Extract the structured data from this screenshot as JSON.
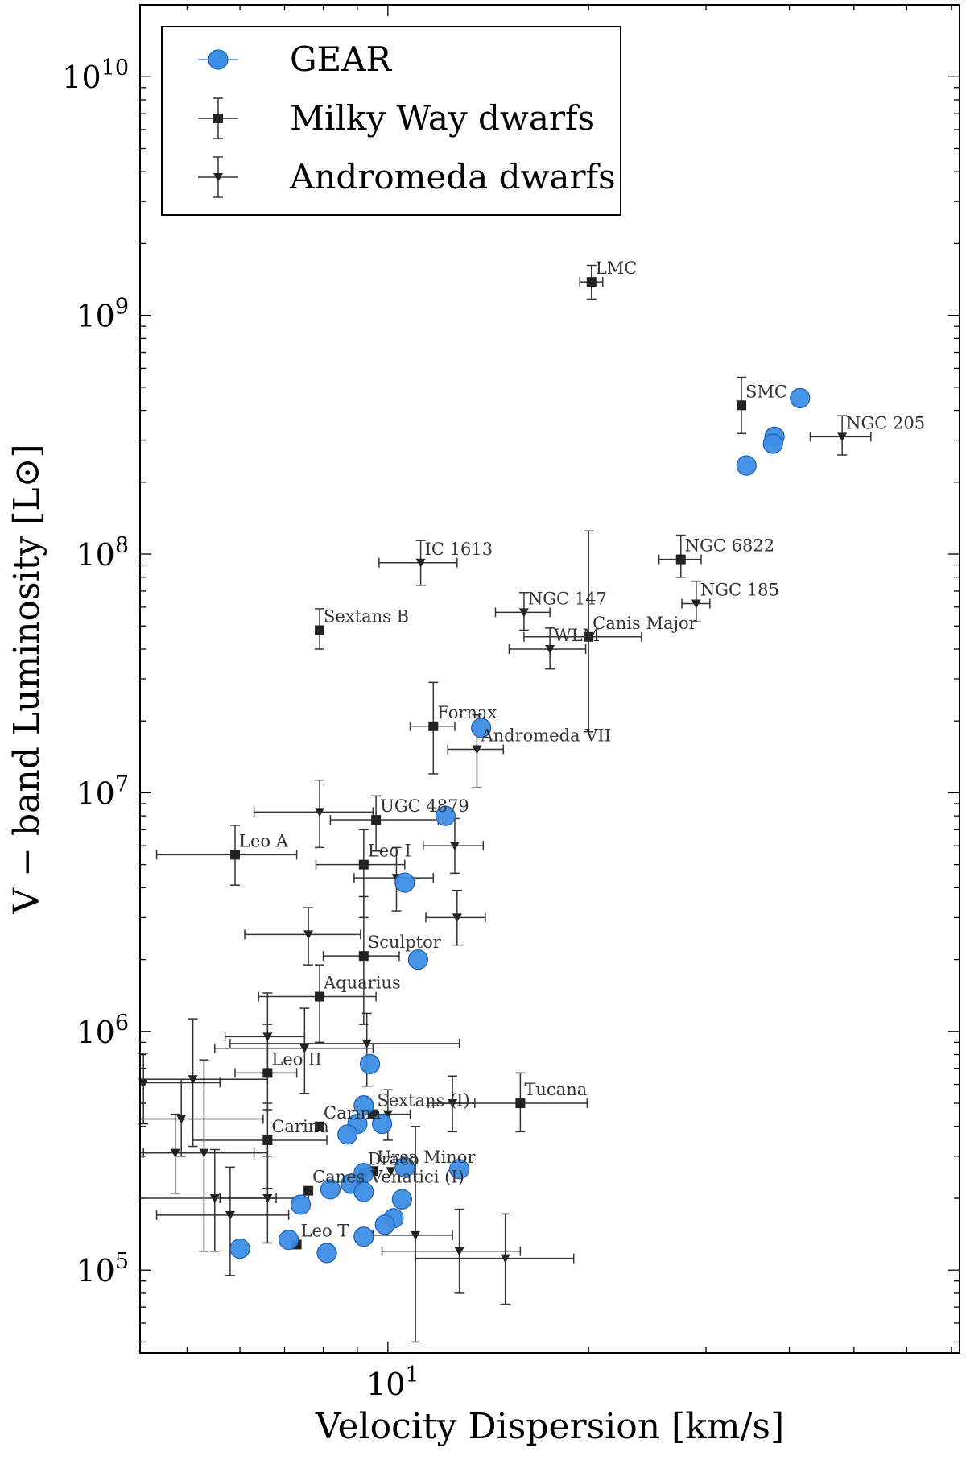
{
  "chart_data": {
    "type": "scatter",
    "title": "",
    "xlabel": "Velocity Dispersion [km/s]",
    "ylabel": "V − band Luminosity [L⊙]",
    "xscale": "log",
    "yscale": "log",
    "xlim": [
      4.25,
      72
    ],
    "ylim": [
      45000,
      20000000000
    ],
    "x_tick_labels": [
      {
        "value": 10,
        "base": "10",
        "exp": "1"
      }
    ],
    "y_tick_labels": [
      {
        "value": 100000,
        "base": "10",
        "exp": "5"
      },
      {
        "value": 1000000,
        "base": "10",
        "exp": "6"
      },
      {
        "value": 10000000,
        "base": "10",
        "exp": "7"
      },
      {
        "value": 100000000,
        "base": "10",
        "exp": "8"
      },
      {
        "value": 1000000000,
        "base": "10",
        "exp": "9"
      },
      {
        "value": 10000000000,
        "base": "10",
        "exp": "10"
      }
    ],
    "legend": {
      "position": "top-left",
      "entries": [
        {
          "label": "GEAR",
          "marker": "circle",
          "color": "#3d8ee6"
        },
        {
          "label": "Milky Way dwarfs",
          "marker": "square",
          "color": "#222222"
        },
        {
          "label": "Andromeda dwarfs",
          "marker": "triangle-down",
          "color": "#222222"
        }
      ]
    },
    "series": [
      {
        "name": "GEAR",
        "marker": "circle",
        "color": "#3d8ee6",
        "points": [
          {
            "x": 41.5,
            "y": 450000000
          },
          {
            "x": 38.0,
            "y": 310000000
          },
          {
            "x": 37.8,
            "y": 290000000
          },
          {
            "x": 34.5,
            "y": 235000000
          },
          {
            "x": 13.8,
            "y": 18700000
          },
          {
            "x": 12.2,
            "y": 8000000
          },
          {
            "x": 10.6,
            "y": 4200000
          },
          {
            "x": 11.1,
            "y": 2000000
          },
          {
            "x": 9.4,
            "y": 730000
          },
          {
            "x": 9.2,
            "y": 490000
          },
          {
            "x": 9.0,
            "y": 410000
          },
          {
            "x": 9.8,
            "y": 410000
          },
          {
            "x": 8.7,
            "y": 370000
          },
          {
            "x": 10.6,
            "y": 270000
          },
          {
            "x": 12.8,
            "y": 265000
          },
          {
            "x": 9.2,
            "y": 255000
          },
          {
            "x": 8.8,
            "y": 230000
          },
          {
            "x": 8.2,
            "y": 218000
          },
          {
            "x": 9.2,
            "y": 213000
          },
          {
            "x": 10.5,
            "y": 198000
          },
          {
            "x": 7.4,
            "y": 188000
          },
          {
            "x": 10.2,
            "y": 165000
          },
          {
            "x": 9.9,
            "y": 155000
          },
          {
            "x": 9.2,
            "y": 138000
          },
          {
            "x": 7.1,
            "y": 134000
          },
          {
            "x": 6.0,
            "y": 123000
          },
          {
            "x": 8.1,
            "y": 118000
          }
        ]
      },
      {
        "name": "Milky Way dwarfs",
        "marker": "square",
        "color": "#222222",
        "points": [
          {
            "x": 20.2,
            "y": 1380000000,
            "xerr": [
              0.8,
              0.8
            ],
            "yerr": [
              210000000,
              240000000
            ],
            "label": "LMC"
          },
          {
            "x": 33.9,
            "y": 420000000,
            "xerr": [
              0,
              0
            ],
            "yerr": [
              100000000,
              130000000
            ],
            "label": "SMC"
          },
          {
            "x": 27.5,
            "y": 95000000,
            "xerr": [
              2.0,
              2.0
            ],
            "yerr": [
              15000000,
              25000000
            ],
            "label": "NGC 6822"
          },
          {
            "x": 7.9,
            "y": 48000000,
            "xerr": [
              0,
              0
            ],
            "yerr": [
              8000000,
              11000000
            ],
            "label": "Sextans B"
          },
          {
            "x": 20.0,
            "y": 45000000,
            "xerr": [
              4.0,
              4.0
            ],
            "yerr": [
              27000000,
              80000000
            ],
            "label": "Canis Major"
          },
          {
            "x": 11.7,
            "y": 19000000,
            "xerr": [
              0.9,
              0.9
            ],
            "yerr": [
              7000000,
              10000000
            ],
            "label": "Fornax"
          },
          {
            "x": 9.6,
            "y": 7700000,
            "xerr": [
              1.4,
              2.3
            ],
            "yerr": [
              2000000,
              2000000
            ],
            "label": "UGC 4879"
          },
          {
            "x": 5.9,
            "y": 5500000,
            "xerr": [
              1.4,
              1.4
            ],
            "yerr": [
              1400000,
              1800000
            ],
            "label": "Leo A"
          },
          {
            "x": 9.2,
            "y": 5000000,
            "xerr": [
              1.4,
              1.4
            ],
            "yerr": [
              2000000,
              2000000
            ],
            "label": "Leo I"
          },
          {
            "x": 9.2,
            "y": 2070000,
            "xerr": [
              1.2,
              1.2
            ],
            "yerr": [
              1000000,
              1600000
            ],
            "label": "Sculptor"
          },
          {
            "x": 7.9,
            "y": 1400000,
            "xerr": [
              1.5,
              1.7
            ],
            "yerr": [
              500000,
              500000
            ],
            "label": "Aquarius"
          },
          {
            "x": 6.6,
            "y": 670000,
            "xerr": [
              0.7,
              0.7
            ],
            "yerr": [
              200000,
              400000
            ],
            "label": "Leo II"
          },
          {
            "x": 15.8,
            "y": 500000,
            "xerr": [
              4.1,
              4.1
            ],
            "yerr": [
              120000,
              170000
            ],
            "label": "Tucana"
          },
          {
            "x": 9.5,
            "y": 450000,
            "xerr": [
              0,
              0
            ],
            "yerr": [
              0,
              0
            ],
            "label": "Sextans (I)"
          },
          {
            "x": 7.9,
            "y": 400000,
            "xerr": [
              0,
              0
            ],
            "yerr": [
              0,
              0
            ],
            "label": "Carina"
          },
          {
            "x": 6.6,
            "y": 350000,
            "xerr": [
              1.5,
              1.5
            ],
            "yerr": [
              130000,
              150000
            ],
            "label": "Carina"
          },
          {
            "x": 9.5,
            "y": 260000,
            "xerr": [
              0,
              0
            ],
            "yerr": [
              0,
              0
            ],
            "label": "Ursa Minor"
          },
          {
            "x": 9.2,
            "y": 255000,
            "xerr": [
              0,
              0
            ],
            "yerr": [
              0,
              0
            ],
            "label": "Draco"
          },
          {
            "x": 7.6,
            "y": 215000,
            "xerr": [
              0,
              0
            ],
            "yerr": [
              0,
              0
            ],
            "label": "Canes Venatici (I)"
          },
          {
            "x": 7.3,
            "y": 128000,
            "xerr": [
              0,
              0
            ],
            "yerr": [
              0,
              0
            ],
            "label": "Leo T"
          }
        ]
      },
      {
        "name": "Andromeda dwarfs",
        "marker": "triangle-down",
        "color": "#222222",
        "points": [
          {
            "x": 48.0,
            "y": 310000000,
            "xerr": [
              5.0,
              5.0
            ],
            "yerr": [
              50000000,
              70000000
            ],
            "label": "NGC 205"
          },
          {
            "x": 11.2,
            "y": 92000000,
            "xerr": [
              1.5,
              1.5
            ],
            "yerr": [
              18000000,
              22000000
            ],
            "label": "IC 1613"
          },
          {
            "x": 29.0,
            "y": 62000000,
            "xerr": [
              1.4,
              1.4
            ],
            "yerr": [
              10000000,
              15000000
            ],
            "label": "NGC 185"
          },
          {
            "x": 16.0,
            "y": 57000000,
            "xerr": [
              1.5,
              1.5
            ],
            "yerr": [
              9000000,
              12000000
            ],
            "label": "NGC 147"
          },
          {
            "x": 17.5,
            "y": 40000000,
            "xerr": [
              2.3,
              2.3
            ],
            "yerr": [
              7000000,
              9000000
            ],
            "label": "WLM"
          },
          {
            "x": 13.6,
            "y": 15200000,
            "xerr": [
              1.3,
              1.3
            ],
            "yerr": [
              4700000,
              6000000
            ],
            "label": "Andromeda VII"
          },
          {
            "x": 7.9,
            "y": 8300000,
            "xerr": [
              1.6,
              1.6
            ],
            "yerr": [
              2400000,
              3000000
            ]
          },
          {
            "x": 12.6,
            "y": 6000000,
            "xerr": [
              1.3,
              1.3
            ],
            "yerr": [
              1400000,
              1800000
            ]
          },
          {
            "x": 10.3,
            "y": 4400000,
            "xerr": [
              1.4,
              1.4
            ],
            "yerr": [
              1200000,
              1500000
            ]
          },
          {
            "x": 12.7,
            "y": 3000000,
            "xerr": [
              1.3,
              1.3
            ],
            "yerr": [
              700000,
              900000
            ]
          },
          {
            "x": 7.6,
            "y": 2550000,
            "xerr": [
              1.5,
              1.5
            ],
            "yerr": [
              650000,
              750000
            ]
          },
          {
            "x": 6.6,
            "y": 950000,
            "xerr": [
              0.9,
              0.9
            ],
            "yerr": [
              300000,
              500000
            ]
          },
          {
            "x": 7.5,
            "y": 850000,
            "xerr": [
              2.0,
              2.0
            ],
            "yerr": [
              300000,
              400000
            ]
          },
          {
            "x": 9.3,
            "y": 890000,
            "xerr": [
              3.5,
              3.5
            ],
            "yerr": [
              300000,
              300000
            ]
          },
          {
            "x": 4.3,
            "y": 610000,
            "xerr": [
              1.3,
              1.3
            ],
            "yerr": [
              200000,
              200000
            ]
          },
          {
            "x": 5.1,
            "y": 630000,
            "xerr": [
              1.5,
              1.5
            ],
            "yerr": [
              300000,
              500000
            ]
          },
          {
            "x": 4.9,
            "y": 430000,
            "xerr": [
              1.6,
              1.6
            ],
            "yerr": [
              130000,
              200000
            ]
          },
          {
            "x": 4.8,
            "y": 310000,
            "xerr": [
              1.8,
              1.8
            ],
            "yerr": [
              100000,
              140000
            ]
          },
          {
            "x": 5.3,
            "y": 310000,
            "xerr": [
              1.0,
              1.0
            ],
            "yerr": [
              190000,
              450000
            ]
          },
          {
            "x": 12.5,
            "y": 500000,
            "xerr": [
              1.0,
              1.0
            ],
            "yerr": [
              120000,
              150000
            ]
          },
          {
            "x": 10.0,
            "y": 450000,
            "xerr": [
              0.8,
              0.8
            ],
            "yerr": [
              100000,
              120000
            ]
          },
          {
            "x": 5.5,
            "y": 200000,
            "xerr": [
              1.3,
              1.3
            ],
            "yerr": [
              80000,
              120000
            ]
          },
          {
            "x": 5.8,
            "y": 170000,
            "xerr": [
              1.3,
              1.3
            ],
            "yerr": [
              75000,
              100000
            ]
          },
          {
            "x": 6.6,
            "y": 200000,
            "xerr": [
              1.0,
              1.0
            ],
            "yerr": [
              70000,
              100000
            ]
          },
          {
            "x": 11.0,
            "y": 140000,
            "xerr": [
              1.5,
              1.5
            ],
            "yerr": [
              90000,
              260000
            ]
          },
          {
            "x": 12.8,
            "y": 120000,
            "xerr": [
              3.0,
              3.0
            ],
            "yerr": [
              40000,
              60000
            ]
          },
          {
            "x": 15.0,
            "y": 112000,
            "xerr": [
              4.0,
              4.0
            ],
            "yerr": [
              40000,
              60000
            ]
          },
          {
            "x": 10.1,
            "y": 260000,
            "xerr": [
              0,
              0
            ],
            "yerr": [
              0,
              0
            ]
          }
        ]
      }
    ]
  }
}
